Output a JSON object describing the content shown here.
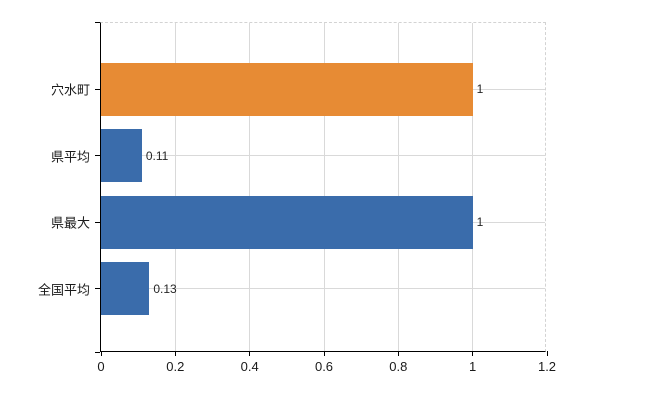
{
  "chart": {
    "background": "#ffffff",
    "colors": {
      "axis": "#000000",
      "grid": "#d9d9d9",
      "plot_border_dashed": "#d3d3d3",
      "text": "#1a1a1a",
      "value_text": "#262626",
      "bar_highlight_orange": "#e78b34",
      "bar_blue": "#3a6cab"
    }
  },
  "chart_data": {
    "type": "bar",
    "orientation": "horizontal",
    "title": "",
    "xlabel": "",
    "ylabel": "",
    "categories": [
      "穴水町",
      "県平均",
      "県最大",
      "全国平均"
    ],
    "values": [
      1,
      0.11,
      1,
      0.13
    ],
    "value_labels": [
      "1",
      "0.11",
      "1",
      "0.13"
    ],
    "bar_colors": [
      "#e78b34",
      "#3a6cab",
      "#3a6cab",
      "#3a6cab"
    ],
    "x_ticks": [
      0,
      0.2,
      0.4,
      0.6,
      0.8,
      1,
      1.2
    ],
    "x_tick_labels": [
      "0",
      "0.2",
      "0.4",
      "0.6",
      "0.8",
      "1",
      "1.2"
    ],
    "xlim": [
      0,
      1.2
    ],
    "grid": true,
    "gridline_style": "vertical value gridlines + horizontal lines at category centers",
    "legend": false
  }
}
